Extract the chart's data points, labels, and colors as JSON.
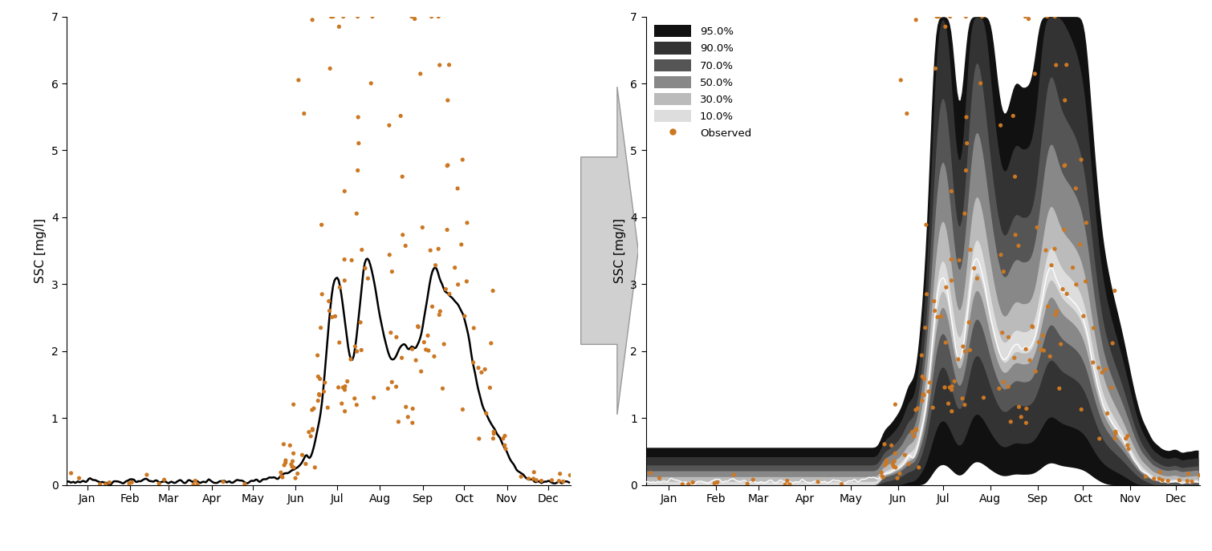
{
  "months": [
    "Jan",
    "Feb",
    "Mar",
    "Apr",
    "May",
    "Jun",
    "Jul",
    "Aug",
    "Sep",
    "Oct",
    "Nov",
    "Dec"
  ],
  "month_positions": [
    15,
    46,
    74,
    105,
    135,
    166,
    196,
    227,
    258,
    288,
    319,
    349
  ],
  "ylim": [
    0,
    7
  ],
  "yticks": [
    0,
    1,
    2,
    3,
    4,
    5,
    6,
    7
  ],
  "ylabel": "SSC [mg/l]",
  "bg_color": "#ffffff",
  "line_color": "#000000",
  "obs_color": "#cc7722",
  "band_colors": [
    "#111111",
    "#333333",
    "#555555",
    "#888888",
    "#bbbbbb",
    "#dddddd"
  ],
  "band_labels": [
    "95.0%",
    "90.0%",
    "70.0%",
    "50.0%",
    "30.0%",
    "10.0%"
  ],
  "legend_labels": [
    "95.0%",
    "90.0%",
    "70.0%",
    "50.0%",
    "30.0%",
    "10.0%",
    "Observed"
  ],
  "arrow_color": "#d0d0d0",
  "arrow_edge_color": "#999999"
}
